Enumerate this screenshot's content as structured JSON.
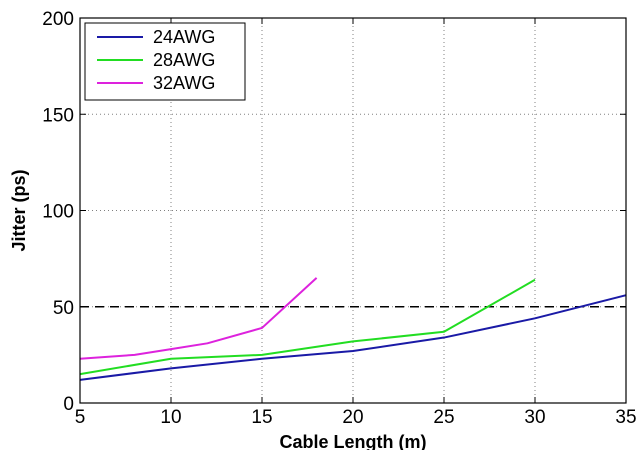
{
  "chart_data": {
    "type": "line",
    "title": "",
    "xlabel": "Cable Length (m)",
    "ylabel": "Jitter (ps)",
    "xlim": [
      5,
      35
    ],
    "ylim": [
      0,
      200
    ],
    "xticks": [
      "5",
      "10",
      "15",
      "20",
      "25",
      "30",
      "35"
    ],
    "yticks": [
      "0",
      "50",
      "100",
      "150",
      "200"
    ],
    "grid": true,
    "legend_position": "top-left",
    "series": [
      {
        "name": "24AWG",
        "color": "#1a1aa6",
        "x": [
          5,
          10,
          15,
          20,
          25,
          30,
          35
        ],
        "y": [
          12,
          18,
          23,
          27,
          34,
          44,
          56
        ]
      },
      {
        "name": "28AWG",
        "color": "#22dd22",
        "x": [
          5,
          10,
          15,
          20,
          25,
          30
        ],
        "y": [
          15,
          23,
          25,
          32,
          37,
          64
        ]
      },
      {
        "name": "32AWG",
        "color": "#dd22dd",
        "x": [
          5,
          8,
          10,
          12,
          15,
          18
        ],
        "y": [
          23,
          25,
          28,
          31,
          39,
          65
        ]
      }
    ],
    "reference_line": {
      "y": 50,
      "style": "dashed",
      "color": "#000000"
    }
  }
}
